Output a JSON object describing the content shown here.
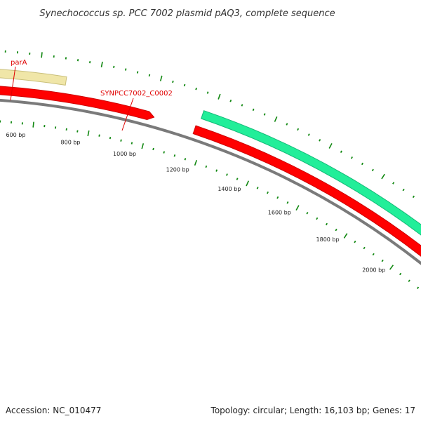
{
  "title": "Synechococcus sp. PCC 7002 plasmid pAQ3, complete sequence",
  "footer": {
    "accession": "Accession: NC_010477",
    "summary": "Topology: circular; Length: 16,103 bp; Genes: 17"
  },
  "genes": [
    {
      "label": "parA",
      "color": "#f0e6a8",
      "track": "outer",
      "strand": "forward"
    },
    {
      "label": "SYNPCC7002_C0002",
      "color": "#ff0000",
      "track": "inner",
      "strand": "forward"
    },
    {
      "label": "",
      "color": "#ff0000",
      "track": "inner",
      "strand": "forward"
    },
    {
      "label": "",
      "color": "#22ee99",
      "track": "outer",
      "strand": "forward"
    }
  ],
  "ticks": {
    "labels": [
      "600 bp",
      "800 bp",
      "1000 bp",
      "1200 bp",
      "1400 bp",
      "1600 bp",
      "1800 bp",
      "2000 bp"
    ],
    "color": "#118811"
  },
  "colors": {
    "backbone": "#7a7a7a",
    "label_line": "#e00000"
  }
}
